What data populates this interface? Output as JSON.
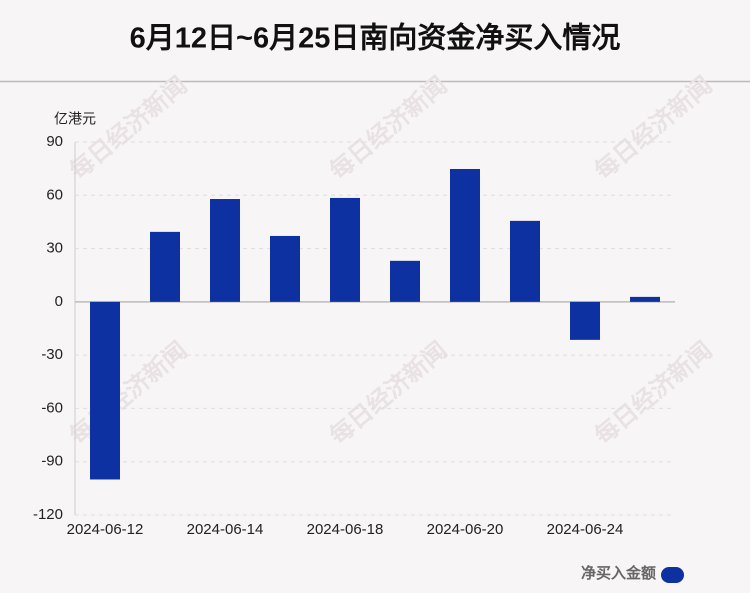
{
  "chart_data": {
    "type": "bar",
    "title": "6月12日~6月25日南向资金净买入情况",
    "y_label": "亿港元",
    "categories": [
      "2024-06-12",
      null,
      "2024-06-14",
      null,
      "2024-06-18",
      null,
      "2024-06-20",
      null,
      "2024-06-24",
      null
    ],
    "series": [
      {
        "name": "净买入金额",
        "color": "#0d31a0",
        "values": [
          -100,
          39.4,
          57.9,
          37.1,
          58.5,
          23.1,
          74.8,
          45.6,
          -21.4,
          2.8
        ]
      }
    ],
    "ylim": [
      -120,
      90
    ],
    "yticks": [
      90,
      60,
      30,
      0,
      -30,
      -60,
      -90,
      -120
    ],
    "grid": true,
    "legend": "bottom-right",
    "watermark": "每日经济新闻"
  }
}
